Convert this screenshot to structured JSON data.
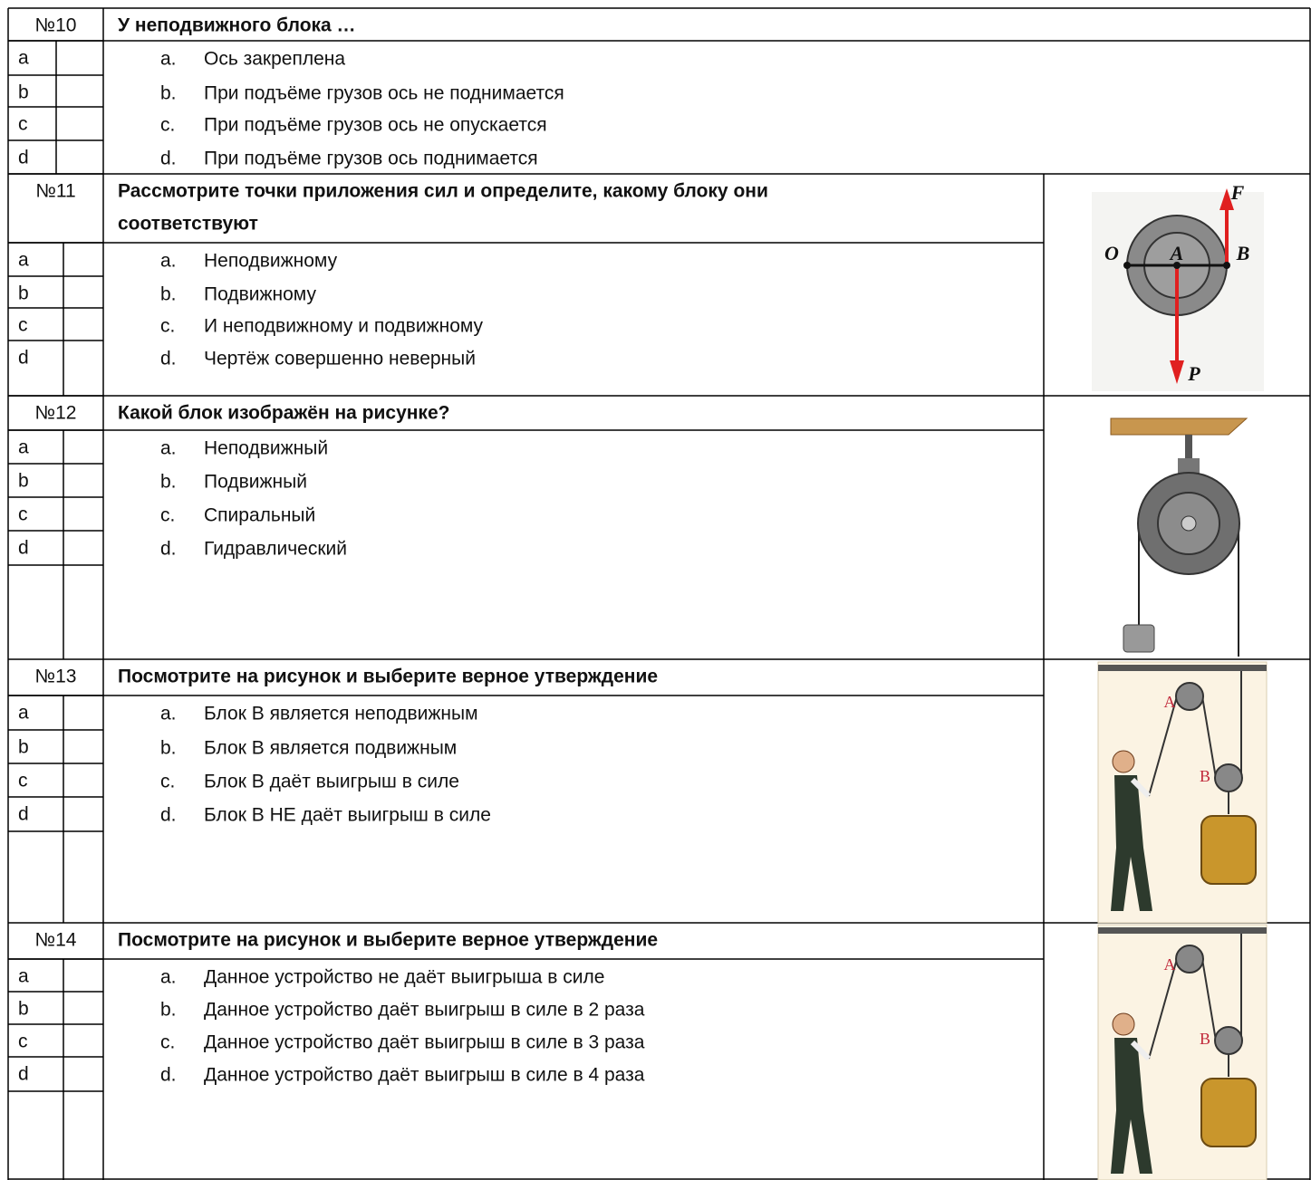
{
  "questions": [
    {
      "number": "№10",
      "text_lines": [
        "У неподвижного блока …"
      ],
      "letters": [
        "a",
        "b",
        "c",
        "d"
      ],
      "options": [
        {
          "marker": "a.",
          "text": "Ось закреплена"
        },
        {
          "marker": "b.",
          "text": "При подъёме грузов ось не поднимается"
        },
        {
          "marker": "c.",
          "text": "При подъёме грузов ось не опускается"
        },
        {
          "marker": "d.",
          "text": "При подъёме грузов ось поднимается"
        }
      ]
    },
    {
      "number": "№11",
      "text_lines": [
        "Рассмотрите точки приложения сил и определите, какому блоку они",
        "соответствуют"
      ],
      "letters": [
        "a",
        "b",
        "c",
        "d"
      ],
      "options": [
        {
          "marker": "a.",
          "text": "Неподвижному"
        },
        {
          "marker": "b.",
          "text": "Подвижному"
        },
        {
          "marker": "c.",
          "text": "И неподвижному и подвижному"
        },
        {
          "marker": "d.",
          "text": "Чертёж совершенно неверный"
        }
      ],
      "figure_labels": [
        "O",
        "A",
        "B",
        "F",
        "P"
      ]
    },
    {
      "number": "№12",
      "text_lines": [
        "Какой блок изображён на рисунке?"
      ],
      "letters": [
        "a",
        "b",
        "c",
        "d"
      ],
      "options": [
        {
          "marker": "a.",
          "text": "Неподвижный"
        },
        {
          "marker": "b.",
          "text": "Подвижный"
        },
        {
          "marker": "c.",
          "text": "Спиральный"
        },
        {
          "marker": "d.",
          "text": "Гидравлический"
        }
      ]
    },
    {
      "number": "№13",
      "text_lines": [
        "Посмотрите на рисунок и выберите верное утверждение"
      ],
      "letters": [
        "a",
        "b",
        "c",
        "d"
      ],
      "options": [
        {
          "marker": "a.",
          "text": "Блок В является неподвижным"
        },
        {
          "marker": "b.",
          "text": "Блок В является подвижным"
        },
        {
          "marker": "c.",
          "text": "Блок В даёт выигрыш в силе"
        },
        {
          "marker": "d.",
          "text": "Блок В НЕ даёт выигрыш в силе"
        }
      ],
      "figure_labels": [
        "A",
        "B"
      ]
    },
    {
      "number": "№14",
      "text_lines": [
        "Посмотрите на рисунок и выберите верное утверждение"
      ],
      "letters": [
        "a",
        "b",
        "c",
        "d"
      ],
      "options": [
        {
          "marker": "a.",
          "text": "Данное устройство не даёт выигрыша в силе"
        },
        {
          "marker": "b.",
          "text": "Данное устройство даёт выигрыш в силе в 2 раза"
        },
        {
          "marker": "c.",
          "text": "Данное устройство даёт выигрыш в силе в 3 раза"
        },
        {
          "marker": "d.",
          "text": "Данное устройство даёт выигрыш в силе в 4 раза"
        }
      ],
      "figure_labels": [
        "A",
        "B"
      ]
    }
  ]
}
